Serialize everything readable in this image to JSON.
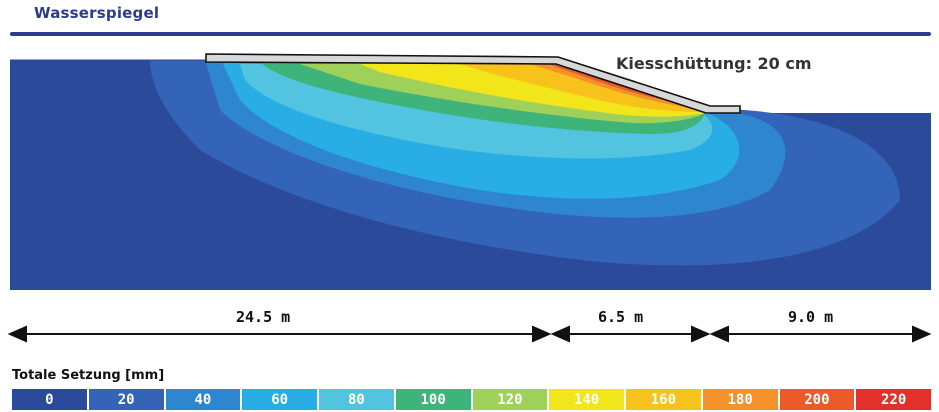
{
  "header": {
    "title": "Wasserspiegel"
  },
  "annotation": {
    "gravel": "Kiesschüttung: 20 cm"
  },
  "dimensions": [
    {
      "label": "24.5 m"
    },
    {
      "label": "6.5 m"
    },
    {
      "label": "9.0 m"
    }
  ],
  "legend": {
    "title": "Totale Setzung [mm]",
    "items": [
      {
        "value": "0",
        "color": "#2c4a9a"
      },
      {
        "value": "20",
        "color": "#3464b8"
      },
      {
        "value": "40",
        "color": "#2f86d0"
      },
      {
        "value": "60",
        "color": "#28aee4"
      },
      {
        "value": "80",
        "color": "#52c4e0"
      },
      {
        "value": "100",
        "color": "#3fb47a"
      },
      {
        "value": "120",
        "color": "#9ed05a"
      },
      {
        "value": "140",
        "color": "#f2e51a"
      },
      {
        "value": "160",
        "color": "#f7c21c"
      },
      {
        "value": "180",
        "color": "#f3912a"
      },
      {
        "value": "200",
        "color": "#ec5a2a"
      },
      {
        "value": "220",
        "color": "#e2312a"
      }
    ]
  }
}
